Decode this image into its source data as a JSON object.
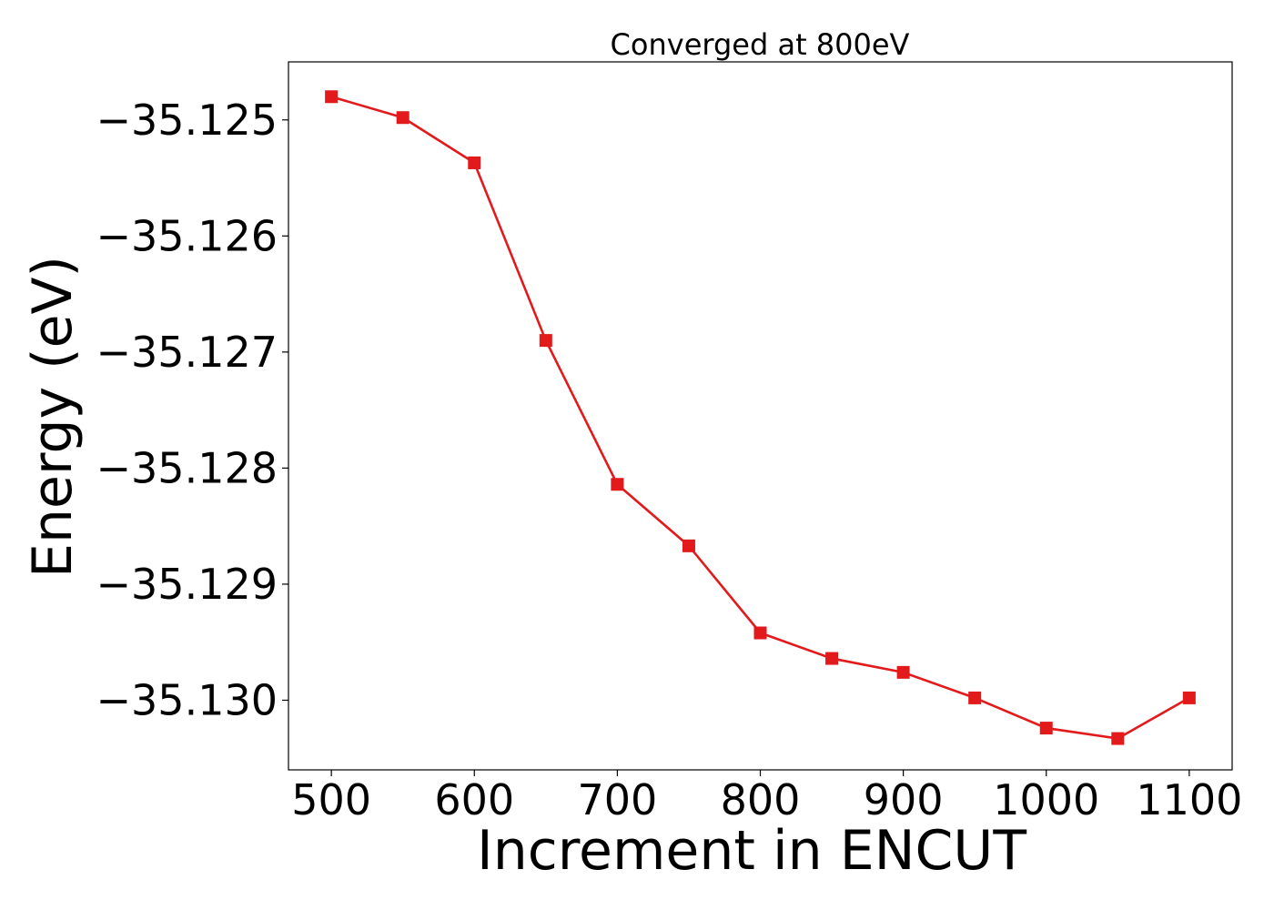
{
  "chart_data": {
    "type": "line",
    "title": "Converged at 800eV",
    "xlabel": "Increment in ENCUT",
    "ylabel": "Energy (eV)",
    "xlim": [
      470,
      1130
    ],
    "ylim": [
      -35.1306,
      -35.1245
    ],
    "xticks": [
      500,
      600,
      700,
      800,
      900,
      1000,
      1100
    ],
    "yticks": [
      -35.125,
      -35.126,
      -35.127,
      -35.128,
      -35.129,
      -35.13
    ],
    "ytick_labels": [
      "−35.125",
      "−35.126",
      "−35.127",
      "−35.128",
      "−35.129",
      "−35.130"
    ],
    "grid": false,
    "series": [
      {
        "color": "#e31a1c",
        "marker": "square",
        "x": [
          500,
          550,
          600,
          650,
          700,
          750,
          800,
          850,
          900,
          950,
          1000,
          1050,
          1100
        ],
        "y": [
          -35.1248,
          -35.12498,
          -35.12537,
          -35.1269,
          -35.12814,
          -35.12867,
          -35.12942,
          -35.12964,
          -35.12976,
          -35.12998,
          -35.13024,
          -35.13033,
          -35.12998
        ]
      }
    ]
  }
}
